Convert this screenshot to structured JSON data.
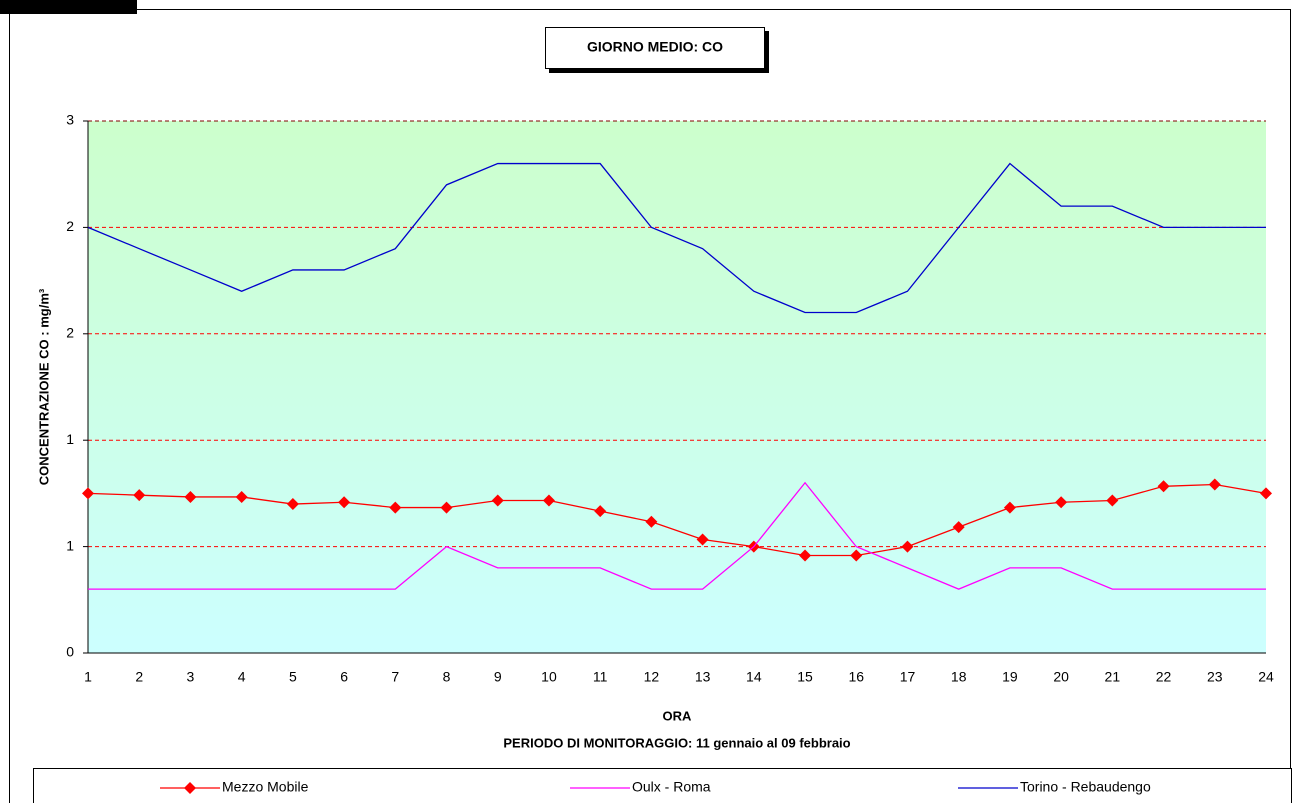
{
  "chart_data": {
    "type": "line",
    "title": "GIORNO MEDIO: CO",
    "y_label": "CONCENTRAZIONE CO :  mg/m³",
    "x_label": "ORA",
    "subtitle": "PERIODO DI MONITORAGGIO: 11 gennaio al 09 febbraio",
    "categories": [
      1,
      2,
      3,
      4,
      5,
      6,
      7,
      8,
      9,
      10,
      11,
      12,
      13,
      14,
      15,
      16,
      17,
      18,
      19,
      20,
      21,
      22,
      23,
      24
    ],
    "ylim": [
      0,
      3
    ],
    "yticks": [
      0,
      {
        "value": 0.6,
        "label": "1"
      },
      {
        "value": 1.2,
        "label": "1"
      },
      {
        "value": 1.8,
        "label": "2"
      },
      {
        "value": 2.4,
        "label": "2"
      },
      3
    ],
    "grid": true,
    "series": [
      {
        "name": "Mezzo Mobile",
        "color": "#ff0000",
        "marker": "diamond",
        "values": [
          0.9,
          0.89,
          0.88,
          0.88,
          0.84,
          0.85,
          0.82,
          0.82,
          0.86,
          0.86,
          0.8,
          0.74,
          0.64,
          0.6,
          0.55,
          0.55,
          0.6,
          0.71,
          0.82,
          0.85,
          0.86,
          0.94,
          0.95,
          0.9
        ]
      },
      {
        "name": "Oulx - Roma",
        "color": "#ff00ff",
        "marker": "none",
        "values": [
          0.36,
          0.36,
          0.36,
          0.36,
          0.36,
          0.36,
          0.36,
          0.6,
          0.48,
          0.48,
          0.48,
          0.36,
          0.36,
          0.6,
          0.96,
          0.6,
          0.48,
          0.36,
          0.48,
          0.48,
          0.36,
          0.36,
          0.36,
          0.36
        ]
      },
      {
        "name": "Torino - Rebaudengo",
        "color": "#0000cc",
        "marker": "none",
        "values": [
          2.4,
          2.28,
          2.16,
          2.04,
          2.16,
          2.16,
          2.28,
          2.64,
          2.76,
          2.76,
          2.76,
          2.4,
          2.28,
          2.04,
          1.92,
          1.92,
          2.04,
          2.4,
          2.76,
          2.52,
          2.52,
          2.4,
          2.4,
          2.4
        ]
      }
    ]
  }
}
